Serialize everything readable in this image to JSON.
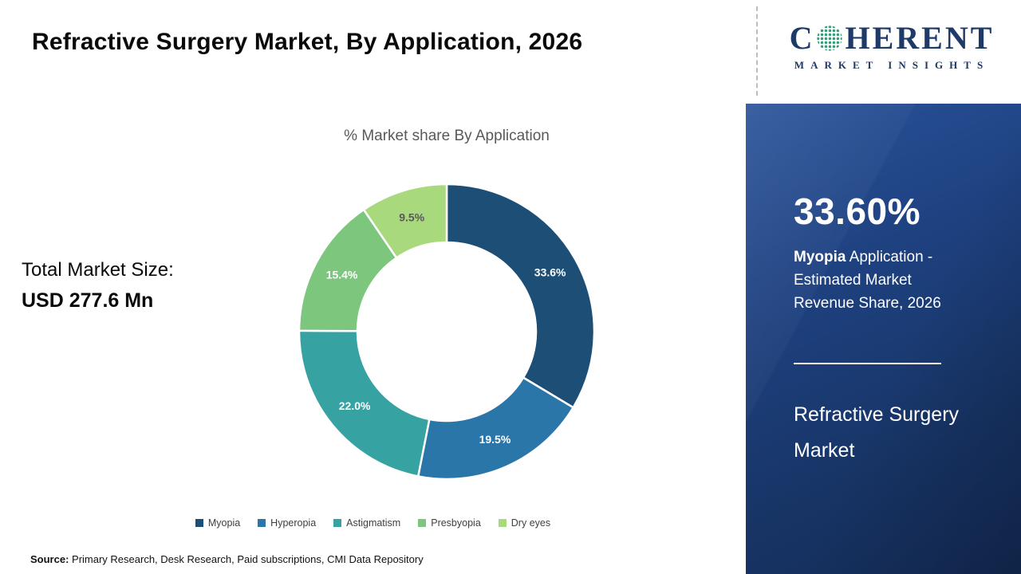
{
  "title": "Refractive Surgery Market, By Application, 2026",
  "subtitle": "% Market share By Application",
  "total": {
    "label": "Total Market Size:",
    "value": "USD 277.6 Mn"
  },
  "source": {
    "label": "Source:",
    "text": " Primary Research, Desk Research, Paid subscriptions, CMI Data Repository"
  },
  "logo": {
    "brand_left": "C",
    "brand_right": "HERENT",
    "brand_sub": "MARKET INSIGHTS",
    "brand_color": "#1e3a68",
    "globe_dot_color": "#2f9e77"
  },
  "sidebar": {
    "stat_value": "33.60%",
    "caption_bold": "Myopia",
    "caption_rest": " Application - Estimated Market Revenue Share, 2026",
    "panel_title": "Refractive Surgery Market",
    "bg_color": "#1c4077"
  },
  "chart_data": {
    "type": "pie",
    "donut": true,
    "title": "% Market share By Application",
    "start_angle_deg": 0,
    "direction": "clockwise",
    "categories": [
      "Myopia",
      "Hyperopia",
      "Astigmatism",
      "Presbyopia",
      "Dry eyes"
    ],
    "values": [
      33.6,
      19.5,
      22.0,
      15.4,
      9.5
    ],
    "labels": [
      "33.6%",
      "19.5%",
      "22.0%",
      "15.4%",
      "9.5%"
    ],
    "colors": [
      "#1d4f76",
      "#2a76a9",
      "#37a2a2",
      "#7dc67e",
      "#a9d97d"
    ],
    "label_colors": [
      "#ffffff",
      "#ffffff",
      "#ffffff",
      "#ffffff",
      "#595959"
    ],
    "legend_position": "bottom",
    "total_label": "Total Market Size:",
    "total_value_usd_mn": 277.6
  }
}
